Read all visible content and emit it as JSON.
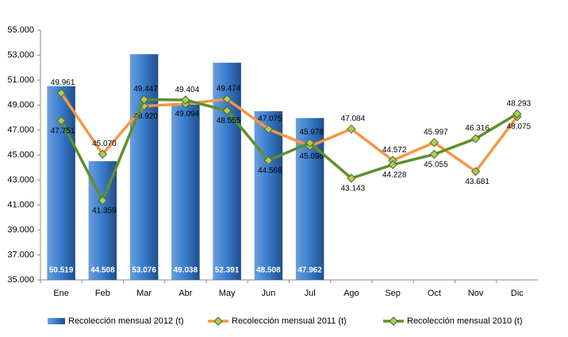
{
  "chart_data": {
    "type": "bar-line",
    "categories": [
      "Ene",
      "Feb",
      "Mar",
      "Abr",
      "May",
      "Jun",
      "Jul",
      "Ago",
      "Sep",
      "Oct",
      "Nov",
      "Dic"
    ],
    "ylim": [
      35000,
      55000
    ],
    "yticks": [
      {
        "value": 35000,
        "label": "35.000"
      },
      {
        "value": 37000,
        "label": "37.000"
      },
      {
        "value": 39000,
        "label": "39.000"
      },
      {
        "value": 41000,
        "label": "41.000"
      },
      {
        "value": 43000,
        "label": "43.000"
      },
      {
        "value": 45000,
        "label": "45.000"
      },
      {
        "value": 47000,
        "label": "47.000"
      },
      {
        "value": 49000,
        "label": "49.000"
      },
      {
        "value": 51000,
        "label": "51.000"
      },
      {
        "value": 53000,
        "label": "53.000"
      },
      {
        "value": 55000,
        "label": "55.000"
      }
    ],
    "legend": "bottom",
    "series": [
      {
        "name": "Recolección mensual 2012 (t)",
        "type": "bar",
        "color": "#3c7fcf",
        "values": [
          50519,
          44508,
          53076,
          49038,
          52391,
          48508,
          47962,
          null,
          null,
          null,
          null,
          null
        ],
        "value_labels": [
          "50.519",
          "44.508",
          "53.076",
          "49.038",
          "52.391",
          "48.508",
          "47.962",
          null,
          null,
          null,
          null,
          null
        ]
      },
      {
        "name": "Recolección mensual 2011 (t)",
        "type": "line",
        "color": "#f79646",
        "values": [
          49961,
          45070,
          48920,
          49094,
          49474,
          47075,
          45698,
          47084,
          44572,
          45997,
          43681,
          48075
        ],
        "value_labels": [
          "49.961",
          "45.070",
          "48.920",
          "49.094",
          "49.474",
          "47.075",
          "45.698",
          "47.084",
          "44.572",
          "45.997",
          "43.681",
          "48.075"
        ]
      },
      {
        "name": "Recolección mensual 2010 (t)",
        "type": "line",
        "color": "#5f8f2a",
        "values": [
          47751,
          41359,
          49447,
          49404,
          48555,
          44568,
          45978,
          43143,
          44228,
          45055,
          46316,
          48293
        ],
        "value_labels": [
          "47.751",
          "41.359",
          "49.447",
          "49.404",
          "48.555",
          "44.568",
          "45.978",
          "43.143",
          "44.228",
          "45.055",
          "46.316",
          "48.293"
        ]
      }
    ]
  }
}
